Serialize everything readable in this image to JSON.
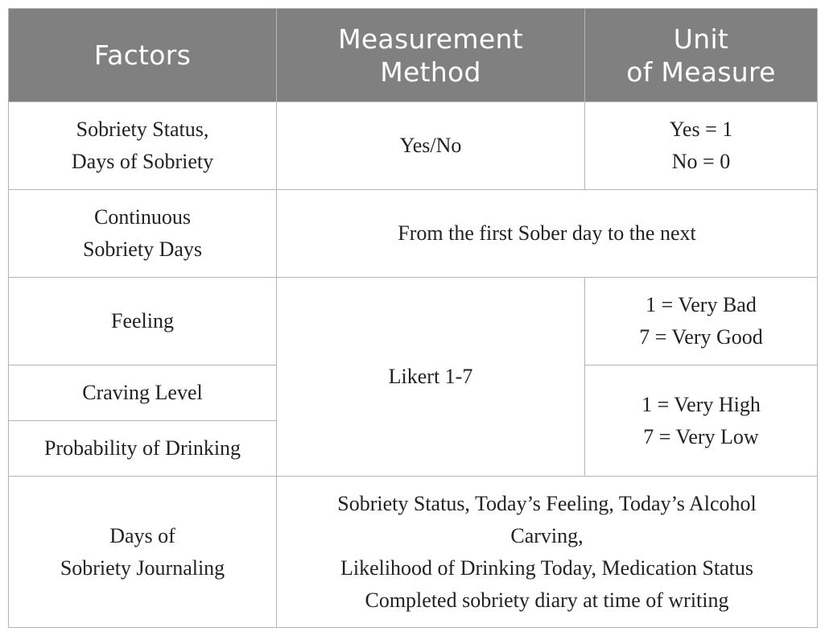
{
  "table": {
    "headers": [
      [
        "Factors"
      ],
      [
        "Measurement",
        "Method"
      ],
      [
        "Unit",
        "of Measure"
      ]
    ],
    "rows": [
      {
        "factor": [
          "Sobriety Status,",
          "Days of Sobriety"
        ],
        "method": [
          "Yes/No"
        ],
        "unit": [
          "Yes = 1",
          "No = 0"
        ]
      },
      {
        "factor": [
          "Continuous",
          "Sobriety Days"
        ],
        "method_and_unit": [
          "From the first Sober day to the next"
        ]
      },
      {
        "factor": [
          "Feeling"
        ],
        "method": [
          "Likert 1-7"
        ],
        "unit": [
          "1 = Very Bad",
          "7 = Very Good"
        ]
      },
      {
        "factor": [
          "Craving Level"
        ],
        "unit": [
          "1 = Very High",
          "7 = Very Low"
        ]
      },
      {
        "factor": [
          "Probability of Drinking"
        ]
      },
      {
        "factor": [
          "Days of",
          "Sobriety Journaling"
        ],
        "method_and_unit": [
          "Sobriety Status, Today’s Feeling, Today’s Alcohol",
          "Carving,",
          "Likelihood of Drinking Today, Medication Status",
          "Completed sobriety diary at time of writing"
        ]
      }
    ]
  },
  "colors": {
    "header_background": "#808080",
    "header_text": "#ffffff",
    "grid_line": "#b4b4b4",
    "body_text": "#222222"
  }
}
